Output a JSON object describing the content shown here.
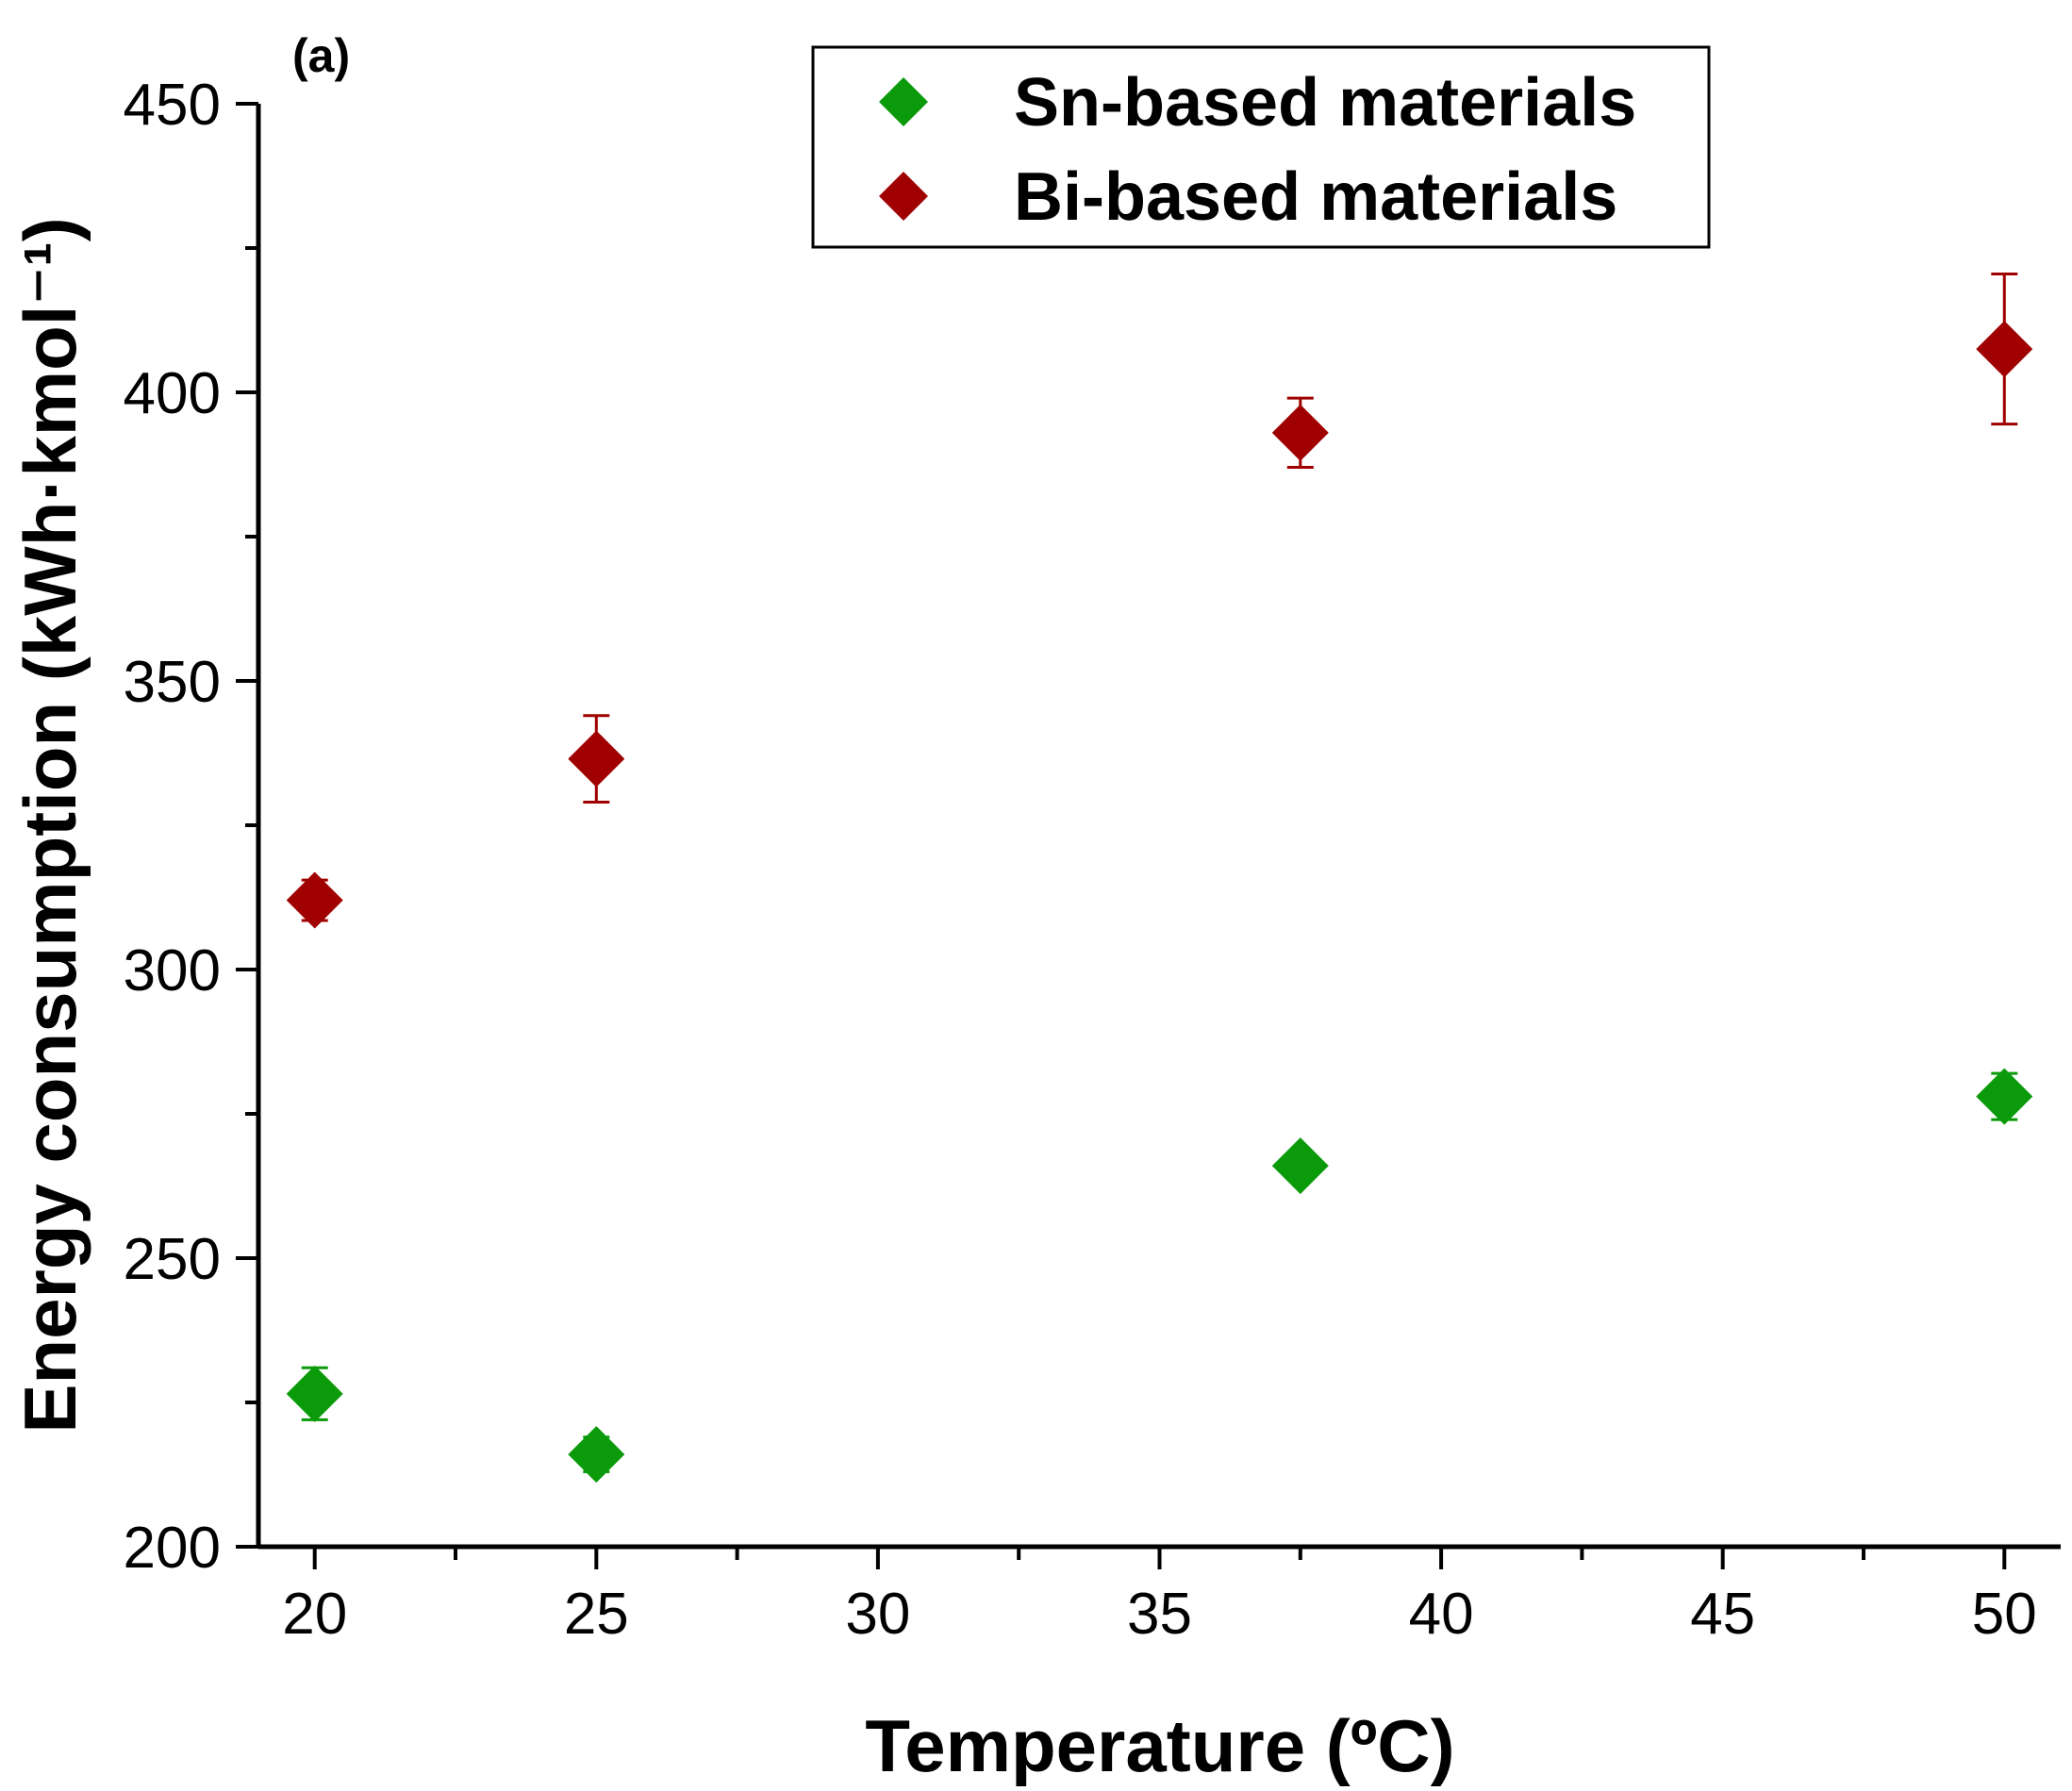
{
  "chart_data": {
    "type": "scatter",
    "panel_label": "(a)",
    "xlabel": "Temperature (ºC)",
    "ylabel": "Energy consumption (kWh·kmol⁻¹)",
    "xlim": [
      19,
      51
    ],
    "ylim": [
      200,
      450
    ],
    "xticks": [
      20,
      25,
      30,
      35,
      40,
      45,
      50
    ],
    "yticks": [
      200,
      250,
      300,
      350,
      400,
      450
    ],
    "x_minor_ticks": [
      22.5,
      27.5,
      32.5,
      37.5,
      42.5,
      47.5
    ],
    "y_minor_ticks": [
      225,
      275,
      325,
      375,
      425
    ],
    "legend_position": "top-right",
    "series": [
      {
        "name": "Sn-based materials",
        "color": "#0a9a0a",
        "marker": "diamond",
        "x": [
          20,
          25,
          37.5,
          50
        ],
        "y": [
          226.5,
          216,
          266,
          278
        ],
        "err": [
          4.5,
          3,
          0,
          4
        ]
      },
      {
        "name": "Bi-based materials",
        "color": "#a00000",
        "marker": "diamond",
        "x": [
          20,
          25,
          37.5,
          50
        ],
        "y": [
          312,
          336.5,
          393,
          407.5
        ],
        "err": [
          3.5,
          7.5,
          6,
          13
        ]
      }
    ]
  }
}
